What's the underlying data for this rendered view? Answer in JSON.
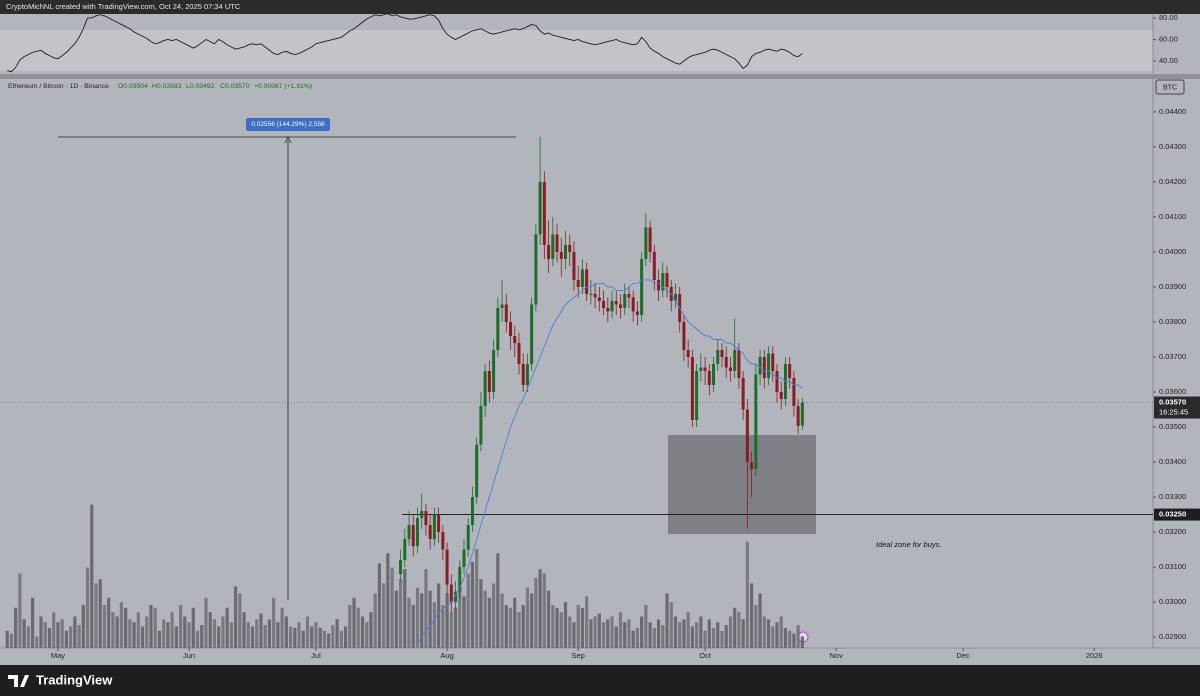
{
  "chart_data": {
    "type": "candlestick",
    "credit": "CryptoMichNL created with TradingView.com, Oct 24, 2025 07:34 UTC",
    "title": "Ethereum / Bitcoin · 1D · Binance",
    "ohlc_text": [
      "O0.03504",
      "H0.03583",
      "L0.03492",
      "C0.03570",
      "+0.00067 (+1.91%)"
    ],
    "currency": "BTC",
    "measure_label": "0.02556 (144.29%) 2,556",
    "zone_label": "Ideal zone for buys.",
    "logo": "TradingView",
    "up_color": "#1f6b2a",
    "down_color": "#8a1c22",
    "xlim": [
      -13.7,
      258.9
    ],
    "xticks": [
      {
        "value": 0,
        "label": "May"
      },
      {
        "value": 31,
        "label": "Jun"
      },
      {
        "value": 61,
        "label": "Jul"
      },
      {
        "value": 92,
        "label": "Aug"
      },
      {
        "value": 123,
        "label": "Sep"
      },
      {
        "value": 153,
        "label": "Oct"
      },
      {
        "value": 184,
        "label": "Nov"
      },
      {
        "value": 214,
        "label": "Dec"
      },
      {
        "value": 245,
        "label": "2026"
      }
    ],
    "ylim": [
      0.02869,
      0.04491
    ],
    "yticks": [
      {
        "value": 0.044,
        "label": "0.04400"
      },
      {
        "value": 0.043,
        "label": "0.04300"
      },
      {
        "value": 0.042,
        "label": "0.04200"
      },
      {
        "value": 0.041,
        "label": "0.04100"
      },
      {
        "value": 0.04,
        "label": "0.04000"
      },
      {
        "value": 0.039,
        "label": "0.03900"
      },
      {
        "value": 0.038,
        "label": "0.03800"
      },
      {
        "value": 0.037,
        "label": "0.03700"
      },
      {
        "value": 0.036,
        "label": "0.03600"
      },
      {
        "value": 0.035,
        "label": "0.03500"
      },
      {
        "value": 0.034,
        "label": "0.03400"
      },
      {
        "value": 0.033,
        "label": "0.03300"
      },
      {
        "value": 0.032,
        "label": "0.03200"
      },
      {
        "value": 0.031,
        "label": "0.03100"
      },
      {
        "value": 0.03,
        "label": "0.03000"
      },
      {
        "value": 0.029,
        "label": "0.02900"
      }
    ],
    "last_price": {
      "value": 0.0357,
      "label": "0.03570"
    },
    "countdown": "16:25:45",
    "hline": {
      "value": 0.0325,
      "label": "0.03250"
    },
    "candles": {
      "x": [
        81,
        82,
        83,
        84,
        85,
        86,
        87,
        88,
        89,
        90,
        91,
        92,
        93,
        94,
        95,
        96,
        97,
        98,
        99,
        100,
        101,
        102,
        103,
        104,
        105,
        106,
        107,
        108,
        109,
        110,
        111,
        112,
        113,
        114,
        115,
        116,
        117,
        118,
        119,
        120,
        121,
        122,
        123,
        124,
        125,
        126,
        127,
        128,
        129,
        130,
        131,
        132,
        133,
        134,
        135,
        136,
        137,
        138,
        139,
        140,
        141,
        142,
        143,
        144,
        145,
        146,
        147,
        148,
        149,
        150,
        151,
        152,
        153,
        154,
        155,
        156,
        157,
        158,
        159,
        160,
        161,
        162,
        163,
        164,
        165,
        166,
        167,
        168,
        169,
        170,
        171,
        172,
        173,
        174,
        175,
        176
      ],
      "open": [
        0.0308,
        0.0312,
        0.0318,
        0.0322,
        0.0316,
        0.0324,
        0.0326,
        0.0322,
        0.0318,
        0.0325,
        0.032,
        0.0315,
        0.0305,
        0.03,
        0.0303,
        0.031,
        0.0315,
        0.0322,
        0.033,
        0.0345,
        0.0356,
        0.0366,
        0.036,
        0.0372,
        0.0384,
        0.0385,
        0.038,
        0.0376,
        0.0374,
        0.0368,
        0.0362,
        0.0368,
        0.0385,
        0.0405,
        0.042,
        0.0402,
        0.0398,
        0.0405,
        0.04,
        0.0398,
        0.0402,
        0.04,
        0.0392,
        0.039,
        0.0395,
        0.0388,
        0.0388,
        0.0387,
        0.0386,
        0.0384,
        0.0383,
        0.0386,
        0.0385,
        0.0384,
        0.0388,
        0.0387,
        0.0383,
        0.0382,
        0.0398,
        0.0407,
        0.04,
        0.0392,
        0.0389,
        0.0394,
        0.039,
        0.0386,
        0.0388,
        0.038,
        0.0372,
        0.037,
        0.0352,
        0.0366,
        0.0367,
        0.0366,
        0.0362,
        0.0368,
        0.0372,
        0.037,
        0.0367,
        0.0366,
        0.0372,
        0.0364,
        0.0355,
        0.034,
        0.0338,
        0.0365,
        0.037,
        0.0364,
        0.0371,
        0.0366,
        0.036,
        0.0358,
        0.0368,
        0.0364,
        0.0356,
        0.03504
      ],
      "high": [
        0.0315,
        0.0321,
        0.0326,
        0.0325,
        0.0327,
        0.0331,
        0.0328,
        0.0325,
        0.0327,
        0.0327,
        0.0322,
        0.0317,
        0.0308,
        0.0306,
        0.0312,
        0.0318,
        0.0324,
        0.0333,
        0.0347,
        0.036,
        0.0368,
        0.0369,
        0.0375,
        0.0387,
        0.0392,
        0.0388,
        0.0383,
        0.0379,
        0.0377,
        0.0371,
        0.0371,
        0.0387,
        0.0408,
        0.0433,
        0.0423,
        0.0409,
        0.041,
        0.0408,
        0.0404,
        0.0406,
        0.0405,
        0.0403,
        0.0396,
        0.0398,
        0.0397,
        0.0392,
        0.0391,
        0.039,
        0.0389,
        0.0387,
        0.0389,
        0.0389,
        0.0388,
        0.0391,
        0.039,
        0.0389,
        0.0386,
        0.04,
        0.0411,
        0.0409,
        0.0402,
        0.0395,
        0.0397,
        0.0396,
        0.0392,
        0.0391,
        0.039,
        0.0382,
        0.0375,
        0.0372,
        0.0368,
        0.0371,
        0.037,
        0.0368,
        0.037,
        0.0375,
        0.0374,
        0.0373,
        0.037,
        0.0381,
        0.0374,
        0.0366,
        0.0358,
        0.0343,
        0.0368,
        0.0372,
        0.0372,
        0.0373,
        0.0373,
        0.0368,
        0.0363,
        0.037,
        0.037,
        0.0366,
        0.0358,
        0.03583
      ],
      "low": [
        0.0306,
        0.031,
        0.0316,
        0.0313,
        0.0314,
        0.0321,
        0.0319,
        0.0315,
        0.0316,
        0.0317,
        0.0312,
        0.0302,
        0.0297,
        0.0298,
        0.0301,
        0.0308,
        0.0313,
        0.032,
        0.0328,
        0.0343,
        0.0353,
        0.0357,
        0.0358,
        0.037,
        0.038,
        0.0377,
        0.0372,
        0.037,
        0.0365,
        0.036,
        0.036,
        0.0366,
        0.0383,
        0.0402,
        0.0398,
        0.0394,
        0.0396,
        0.0397,
        0.0393,
        0.0395,
        0.0396,
        0.0389,
        0.0387,
        0.0388,
        0.0386,
        0.0385,
        0.0384,
        0.0383,
        0.0382,
        0.038,
        0.0381,
        0.0382,
        0.0381,
        0.0382,
        0.0384,
        0.038,
        0.0379,
        0.038,
        0.0396,
        0.0397,
        0.0389,
        0.0386,
        0.0387,
        0.0387,
        0.0383,
        0.0384,
        0.0377,
        0.0369,
        0.0367,
        0.035,
        0.035,
        0.0363,
        0.0362,
        0.0359,
        0.036,
        0.0366,
        0.0367,
        0.0364,
        0.0363,
        0.0364,
        0.0361,
        0.0352,
        0.0321,
        0.033,
        0.0336,
        0.0362,
        0.0361,
        0.0362,
        0.0363,
        0.0357,
        0.0355,
        0.0356,
        0.0361,
        0.0353,
        0.0348,
        0.03492
      ],
      "close": [
        0.0312,
        0.0318,
        0.0322,
        0.0316,
        0.0324,
        0.0326,
        0.0322,
        0.0318,
        0.0325,
        0.032,
        0.0315,
        0.0305,
        0.03,
        0.0303,
        0.031,
        0.0315,
        0.0322,
        0.033,
        0.0345,
        0.0356,
        0.0366,
        0.036,
        0.0372,
        0.0384,
        0.0385,
        0.038,
        0.0376,
        0.0374,
        0.0368,
        0.0362,
        0.0368,
        0.0385,
        0.0405,
        0.042,
        0.0402,
        0.0398,
        0.0405,
        0.04,
        0.0398,
        0.0402,
        0.04,
        0.0392,
        0.039,
        0.0395,
        0.0388,
        0.0388,
        0.0387,
        0.0386,
        0.0384,
        0.0383,
        0.0386,
        0.0385,
        0.0384,
        0.0388,
        0.0387,
        0.0383,
        0.0382,
        0.0398,
        0.0407,
        0.04,
        0.0392,
        0.0389,
        0.0394,
        0.039,
        0.0386,
        0.0388,
        0.038,
        0.0372,
        0.037,
        0.0352,
        0.0366,
        0.0367,
        0.0366,
        0.0362,
        0.0368,
        0.0372,
        0.037,
        0.0367,
        0.0366,
        0.0372,
        0.0364,
        0.0355,
        0.034,
        0.0338,
        0.0365,
        0.037,
        0.0364,
        0.0371,
        0.0366,
        0.036,
        0.0358,
        0.0368,
        0.0364,
        0.0356,
        0.03503,
        0.0357
      ],
      "ma": {
        "color": "#4a7fd8",
        "values": [
          null,
          null,
          null,
          null,
          0.0288,
          0.029,
          0.0292,
          0.0293,
          0.0295,
          0.0297,
          0.0298,
          0.0299,
          0.03,
          0.0302,
          0.0304,
          0.0307,
          0.031,
          0.0314,
          0.0318,
          0.0322,
          0.0326,
          0.033,
          0.0334,
          0.0338,
          0.0342,
          0.0346,
          0.035,
          0.0353,
          0.0356,
          0.0358,
          0.0361,
          0.0364,
          0.0367,
          0.037,
          0.0373,
          0.0376,
          0.0379,
          0.0381,
          0.0383,
          0.0385,
          0.0386,
          0.0387,
          0.0388,
          0.0389,
          0.039,
          0.039,
          0.0391,
          0.0391,
          0.0391,
          0.039,
          0.039,
          0.0389,
          0.0389,
          0.0389,
          0.039,
          0.0391,
          0.0391,
          0.0392,
          0.0392,
          0.0392,
          0.0391,
          0.0391,
          0.039,
          0.0389,
          0.0388,
          0.0386,
          0.0384,
          0.0382,
          0.038,
          0.0379,
          0.0378,
          0.0377,
          0.0376,
          0.0376,
          0.0375,
          0.0375,
          0.0375,
          0.0374,
          0.0374,
          0.0373,
          0.0372,
          0.0371,
          0.0369,
          0.0368,
          0.0368,
          0.0367,
          0.0366,
          0.0366,
          0.0365,
          0.0364,
          0.0364,
          0.0363,
          0.0363,
          0.0362,
          0.0362,
          0.0361
        ]
      }
    },
    "x": [
      -12,
      -11,
      -10,
      -9,
      -8,
      -7,
      -6,
      -5,
      -4,
      -3,
      -2,
      -1,
      0,
      1,
      2,
      3,
      4,
      5,
      6,
      7,
      8,
      9,
      10,
      11,
      12,
      13,
      14,
      15,
      16,
      17,
      18,
      19,
      20,
      21,
      22,
      23,
      24,
      25,
      26,
      27,
      28,
      29,
      30,
      31,
      32,
      33,
      34,
      35,
      36,
      37,
      38,
      39,
      40,
      41,
      42,
      43,
      44,
      45,
      46,
      47,
      48,
      49,
      50,
      51,
      52,
      53,
      54,
      55,
      56,
      57,
      58,
      59,
      60,
      61,
      62,
      63,
      64,
      65,
      66,
      67,
      68,
      69,
      70,
      71,
      72,
      73,
      74,
      75,
      76,
      77,
      78,
      79,
      80,
      81,
      82,
      83,
      84,
      85,
      86,
      87,
      88,
      89,
      90,
      91,
      92,
      93,
      94,
      95,
      96,
      97,
      98,
      99,
      100,
      101,
      102,
      103,
      104,
      105,
      106,
      107,
      108,
      109,
      110,
      111,
      112,
      113,
      114,
      115,
      116,
      117,
      118,
      119,
      120,
      121,
      122,
      123,
      124,
      125,
      126,
      127,
      128,
      129,
      130,
      131,
      132,
      133,
      134,
      135,
      136,
      137,
      138,
      139,
      140,
      141,
      142,
      143,
      144,
      145,
      146,
      147,
      148,
      149,
      150,
      151,
      152,
      153,
      154,
      155,
      156,
      157,
      158,
      159,
      160,
      161,
      162,
      163,
      164,
      165,
      166,
      167,
      168,
      169,
      170,
      171,
      172,
      173,
      174,
      175,
      176
    ],
    "volume": {
      "color": "#65676c",
      "ylim": [
        0,
        396
      ],
      "values": [
        12,
        10,
        28,
        52,
        20,
        15,
        35,
        8,
        22,
        18,
        14,
        25,
        18,
        20,
        12,
        15,
        22,
        16,
        30,
        56,
        100,
        45,
        48,
        30,
        35,
        25,
        22,
        32,
        28,
        20,
        18,
        25,
        15,
        22,
        30,
        28,
        12,
        20,
        18,
        25,
        15,
        30,
        22,
        18,
        28,
        12,
        16,
        35,
        25,
        20,
        15,
        22,
        28,
        18,
        43,
        38,
        25,
        18,
        15,
        20,
        24,
        16,
        20,
        35,
        18,
        28,
        22,
        15,
        14,
        18,
        12,
        22,
        15,
        18,
        14,
        12,
        10,
        16,
        20,
        12,
        15,
        30,
        35,
        28,
        22,
        18,
        25,
        38,
        59,
        45,
        66,
        56,
        40,
        48,
        55,
        35,
        30,
        42,
        38,
        55,
        40,
        32,
        45,
        30,
        38,
        25,
        28,
        42,
        36,
        52,
        60,
        69,
        48,
        40,
        35,
        45,
        66,
        38,
        30,
        28,
        35,
        25,
        30,
        42,
        38,
        49,
        55,
        52,
        40,
        30,
        28,
        25,
        32,
        22,
        18,
        30,
        28,
        36,
        20,
        22,
        24,
        18,
        20,
        22,
        15,
        25,
        18,
        20,
        12,
        14,
        22,
        30,
        18,
        14,
        20,
        16,
        38,
        32,
        22,
        18,
        20,
        25,
        15,
        18,
        22,
        12,
        20,
        14,
        18,
        12,
        16,
        22,
        28,
        25,
        20,
        74,
        45,
        30,
        38,
        22,
        20,
        15,
        18,
        22,
        14,
        12,
        10,
        16,
        8
      ]
    },
    "rsi": {
      "color": "#1e1e1e",
      "ylim": [
        28.8,
        83.7
      ],
      "yticks": [
        {
          "value": 80,
          "label": "80.00"
        },
        {
          "value": 60,
          "label": "60.00"
        },
        {
          "value": 40,
          "label": "40.00"
        }
      ],
      "values": [
        31,
        30,
        34,
        41,
        44,
        46,
        48,
        49,
        50,
        47,
        45,
        43,
        42,
        45,
        48,
        52,
        56,
        62,
        70,
        80,
        80,
        82,
        83,
        82,
        80,
        78,
        76,
        74,
        72,
        70,
        67,
        65,
        63,
        61,
        58,
        56,
        57,
        59,
        60,
        59,
        60,
        58,
        56,
        54,
        52,
        54,
        57,
        60,
        58,
        56,
        60,
        58,
        55,
        53,
        51,
        52,
        53,
        55,
        56,
        55,
        56,
        53,
        50,
        47,
        46,
        48,
        49,
        47,
        46,
        47,
        49,
        51,
        53,
        56,
        57,
        58,
        59,
        60,
        61,
        62,
        65,
        68,
        70,
        73,
        76,
        79,
        81,
        83,
        82,
        83,
        84,
        82,
        83,
        81,
        80,
        79,
        79,
        80,
        81,
        82,
        83,
        82,
        78,
        70,
        65,
        62,
        60,
        62,
        64,
        66,
        68,
        69,
        70,
        68,
        66,
        65,
        66,
        67,
        68,
        69,
        70,
        69,
        70,
        72,
        74,
        73,
        68,
        65,
        66,
        64,
        63,
        62,
        61,
        60,
        59,
        60,
        58,
        57,
        56,
        55,
        56,
        57,
        58,
        59,
        60,
        58,
        57,
        56,
        55,
        56,
        62,
        58,
        52,
        49,
        47,
        44,
        42,
        40,
        38,
        37,
        40,
        43,
        45,
        46,
        47,
        48,
        50,
        51,
        50,
        48,
        46,
        44,
        42,
        38,
        33,
        36,
        44,
        47,
        48,
        50,
        51,
        50,
        49,
        51,
        50,
        48,
        45,
        44,
        47
      ]
    }
  }
}
